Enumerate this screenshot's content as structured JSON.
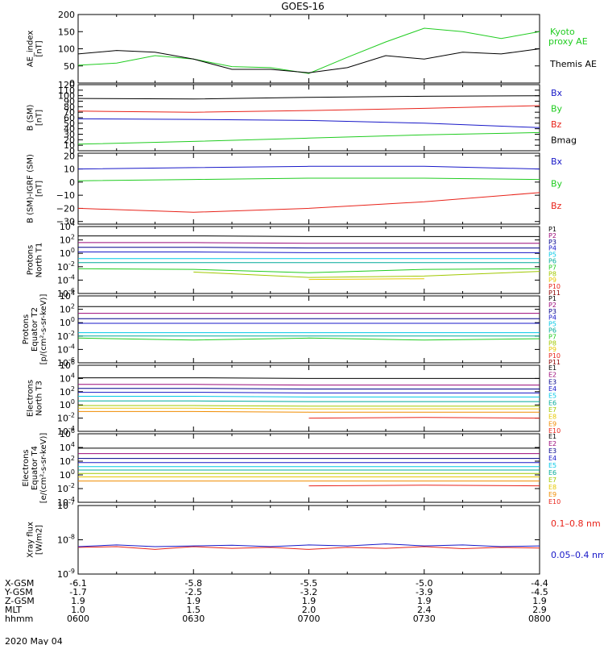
{
  "title": "GOES-16",
  "date_label": "2020 May 04",
  "colors": {
    "black": "#000000",
    "red": "#e8231a",
    "green": "#20cc20",
    "blue": "#1818c8",
    "cyan": "#00c8e6",
    "yellow": "#e6c800",
    "orange": "#f08c00",
    "magenta": "#9b0a7a",
    "teal": "#00aa99",
    "lime": "#a0c800",
    "navy": "#00008b",
    "dark_red": "#8b0000"
  },
  "orbit_table": {
    "rows": [
      {
        "label": "X-GSM",
        "values": [
          "-6.1",
          "-5.8",
          "-5.5",
          "-5.0",
          "-4.4"
        ]
      },
      {
        "label": "Y-GSM",
        "values": [
          "-1.7",
          "-2.5",
          "-3.2",
          "-3.9",
          "-4.5"
        ]
      },
      {
        "label": "Z-GSM",
        "values": [
          "1.9",
          "1.9",
          "1.9",
          "1.9",
          "1.9"
        ]
      },
      {
        "label": "MLT",
        "values": [
          "1.0",
          "1.5",
          "2.0",
          "2.4",
          "2.9"
        ]
      },
      {
        "label": "hhmm",
        "values": [
          "0600",
          "0630",
          "0700",
          "0730",
          "0800"
        ]
      }
    ]
  },
  "chart_data": [
    {
      "type": "line",
      "ylabel": [
        "AE_index",
        "[nT]"
      ],
      "ylim": [
        0,
        200
      ],
      "yticks": [
        "0",
        "50",
        "100",
        "150",
        "200"
      ],
      "ytick_values": [
        0,
        50,
        100,
        150,
        200
      ],
      "x": [
        "0600",
        "0610",
        "0620",
        "0630",
        "0640",
        "0650",
        "0700",
        "0710",
        "0720",
        "0730",
        "0740",
        "0750",
        "0800"
      ],
      "series": [
        {
          "name": "Kyoto proxy AE",
          "color": "green",
          "values": [
            52,
            58,
            80,
            70,
            48,
            45,
            28,
            75,
            120,
            160,
            150,
            130,
            150
          ]
        },
        {
          "name": "Themis AE",
          "color": "black",
          "values": [
            85,
            95,
            90,
            70,
            40,
            40,
            30,
            45,
            80,
            70,
            90,
            85,
            100
          ]
        }
      ],
      "legend": [
        "Kyoto",
        "proxy AE",
        "Themis AE"
      ]
    },
    {
      "type": "line",
      "ylabel": [
        "B (SM)",
        "[nT]"
      ],
      "ylim": [
        0,
        120
      ],
      "yticks": [
        "0",
        "10",
        "20",
        "30",
        "40",
        "50",
        "60",
        "70",
        "80",
        "90",
        "100",
        "110",
        "120"
      ],
      "ytick_values": [
        0,
        10,
        20,
        30,
        40,
        50,
        60,
        70,
        80,
        90,
        100,
        110,
        120
      ],
      "x": [
        "0600",
        "0630",
        "0700",
        "0730",
        "0800"
      ],
      "series": [
        {
          "name": "Bmag",
          "color": "black",
          "values": [
            95,
            94,
            97,
            99,
            100
          ]
        },
        {
          "name": "Bz",
          "color": "red",
          "values": [
            72,
            70,
            73,
            77,
            82
          ]
        },
        {
          "name": "Bx",
          "color": "blue",
          "values": [
            58,
            57,
            55,
            50,
            42
          ]
        },
        {
          "name": "By",
          "color": "green",
          "values": [
            12,
            17,
            23,
            29,
            33
          ]
        }
      ],
      "legend": [
        "Bx",
        "By",
        "Bz",
        "Bmag"
      ]
    },
    {
      "type": "line",
      "ylabel": [
        "B (SM)-IGRF (SM)",
        "[nT]"
      ],
      "ylim": [
        -32,
        22
      ],
      "yticks": [
        "20",
        "10",
        "0",
        "−10",
        "−20",
        "−30"
      ],
      "ytick_values": [
        20,
        10,
        0,
        -10,
        -20,
        -30
      ],
      "x": [
        "0600",
        "0630",
        "0700",
        "0730",
        "0800"
      ],
      "series": [
        {
          "name": "Bx",
          "color": "blue",
          "values": [
            10,
            11,
            12,
            12,
            10
          ]
        },
        {
          "name": "By",
          "color": "green",
          "values": [
            1,
            2,
            3,
            3,
            2
          ]
        },
        {
          "name": "Bz",
          "color": "red",
          "values": [
            -20,
            -23,
            -20,
            -15,
            -8
          ]
        }
      ],
      "legend": [
        "Bx",
        "By",
        "Bz"
      ]
    },
    {
      "type": "line",
      "ylabel": [
        "Protons",
        "North T1"
      ],
      "log": true,
      "ylim_exp": [
        -6,
        4
      ],
      "ytick_exps": [
        4,
        2,
        0,
        -2,
        -4,
        -6
      ],
      "x": [
        "0600",
        "0630",
        "0700",
        "0730",
        "0800"
      ],
      "series": [
        {
          "name": "P1",
          "color": "black",
          "values_log10": [
            2.6,
            2.6,
            2.5,
            2.5,
            2.5
          ]
        },
        {
          "name": "P2",
          "color": "magenta",
          "values_log10": [
            1.6,
            1.6,
            1.5,
            1.5,
            1.5
          ]
        },
        {
          "name": "P3",
          "color": "navy",
          "values_log10": [
            0.9,
            0.9,
            0.8,
            0.8,
            0.8
          ]
        },
        {
          "name": "P4",
          "color": "blue",
          "values_log10": [
            0.2,
            0.2,
            0.1,
            0.1,
            0.1
          ]
        },
        {
          "name": "P5",
          "color": "cyan",
          "values_log10": [
            -0.8,
            -0.8,
            -0.8,
            -0.8,
            -0.8
          ]
        },
        {
          "name": "P6",
          "color": "teal",
          "values_log10": [
            -1.4,
            -1.4,
            -1.4,
            -1.4,
            -1.4
          ]
        },
        {
          "name": "P7",
          "color": "green",
          "values_log10": [
            -2.3,
            -2.4,
            -2.9,
            -2.4,
            -2.3
          ]
        },
        {
          "name": "P8",
          "color": "lime",
          "values_log10": [
            null,
            -2.8,
            -3.6,
            -3.4,
            -2.7
          ]
        },
        {
          "name": "P9",
          "color": "yellow",
          "values_log10": [
            null,
            null,
            -3.9,
            -3.8,
            null
          ]
        },
        {
          "name": "P10",
          "color": "red",
          "values_log10": [
            null,
            null,
            null,
            null,
            null
          ]
        },
        {
          "name": "P11",
          "color": "dark_red",
          "values_log10": [
            null,
            null,
            null,
            null,
            null
          ]
        }
      ],
      "legend": [
        "P1",
        "P2",
        "P3",
        "P4",
        "P5",
        "P6",
        "P7",
        "P8",
        "P9",
        "P10",
        "P11"
      ]
    },
    {
      "type": "line",
      "ylabel": [
        "Protons",
        "Equator T2",
        "[p/(cm²-s-sr-keV)]"
      ],
      "log": true,
      "ylim_exp": [
        -6,
        4
      ],
      "ytick_exps": [
        4,
        2,
        0,
        -2,
        -4,
        -6
      ],
      "x": [
        "0600",
        "0630",
        "0700",
        "0730",
        "0800"
      ],
      "series": [
        {
          "name": "P1",
          "color": "black",
          "values_log10": [
            2.4,
            2.4,
            2.4,
            2.4,
            2.4
          ]
        },
        {
          "name": "P2",
          "color": "magenta",
          "values_log10": [
            1.4,
            1.4,
            1.4,
            1.4,
            1.4
          ]
        },
        {
          "name": "P3",
          "color": "navy",
          "values_log10": [
            0.6,
            0.6,
            0.6,
            0.6,
            0.6
          ]
        },
        {
          "name": "P4",
          "color": "blue",
          "values_log10": [
            -0.1,
            -0.1,
            -0.1,
            -0.1,
            -0.1
          ]
        },
        {
          "name": "P5",
          "color": "cyan",
          "values_log10": [
            -1.5,
            -1.5,
            -1.5,
            -1.5,
            -1.5
          ]
        },
        {
          "name": "P6",
          "color": "teal",
          "values_log10": [
            -2.0,
            -2.0,
            -2.0,
            -2.0,
            -2.0
          ]
        },
        {
          "name": "P7",
          "color": "green",
          "values_log10": [
            -2.3,
            -2.6,
            -2.3,
            -2.6,
            -2.4
          ]
        },
        {
          "name": "P8",
          "color": "lime",
          "values_log10": [
            null,
            -3.0,
            null,
            -3.1,
            null
          ]
        },
        {
          "name": "P9",
          "color": "yellow",
          "values_log10": [
            null,
            -3.5,
            null,
            -3.4,
            null
          ]
        },
        {
          "name": "P10",
          "color": "red",
          "values_log10": [
            null,
            null,
            null,
            null,
            null
          ]
        },
        {
          "name": "P11",
          "color": "dark_red",
          "values_log10": [
            null,
            null,
            null,
            null,
            null
          ]
        }
      ],
      "legend": [
        "P1",
        "P2",
        "P3",
        "P4",
        "P5",
        "P6",
        "P7",
        "P8",
        "P9",
        "P10",
        "P11"
      ]
    },
    {
      "type": "line",
      "ylabel": [
        "Electrons",
        "North T3"
      ],
      "log": true,
      "ylim_exp": [
        -4,
        6
      ],
      "ytick_exps": [
        6,
        4,
        2,
        0,
        -2,
        -4
      ],
      "x": [
        "0600",
        "0630",
        "0700",
        "0730",
        "0800"
      ],
      "series": [
        {
          "name": "E1",
          "color": "black",
          "values_log10": [
            4.1,
            4.1,
            4.0,
            4.0,
            4.0
          ]
        },
        {
          "name": "E2",
          "color": "magenta",
          "values_log10": [
            3.1,
            3.1,
            3.0,
            3.0,
            3.0
          ]
        },
        {
          "name": "E3",
          "color": "navy",
          "values_log10": [
            2.5,
            2.5,
            2.4,
            2.4,
            2.4
          ]
        },
        {
          "name": "E4",
          "color": "blue",
          "values_log10": [
            1.9,
            1.9,
            1.8,
            1.8,
            1.8
          ]
        },
        {
          "name": "E5",
          "color": "cyan",
          "values_log10": [
            1.3,
            1.3,
            1.2,
            1.2,
            1.2
          ]
        },
        {
          "name": "E6",
          "color": "teal",
          "values_log10": [
            0.6,
            0.6,
            0.5,
            0.5,
            0.5
          ]
        },
        {
          "name": "E7",
          "color": "lime",
          "values_log10": [
            -0.1,
            -0.1,
            -0.2,
            -0.2,
            -0.2
          ]
        },
        {
          "name": "E8",
          "color": "yellow",
          "values_log10": [
            -0.5,
            -0.5,
            -0.6,
            -0.6,
            -0.6
          ]
        },
        {
          "name": "E9",
          "color": "orange",
          "values_log10": [
            -1.0,
            -1.0,
            -1.1,
            -1.1,
            -1.1
          ]
        },
        {
          "name": "E10",
          "color": "red",
          "values_log10": [
            -1.8,
            null,
            -2.0,
            -1.9,
            -2.0
          ]
        }
      ],
      "legend": [
        "E1",
        "E2",
        "E3",
        "E4",
        "E5",
        "E6",
        "E7",
        "E8",
        "E9",
        "E10"
      ]
    },
    {
      "type": "line",
      "ylabel": [
        "Electrons",
        "Equator T4",
        "[e/(cm²-s-sr-keV)]"
      ],
      "log": true,
      "ylim_exp": [
        -4,
        6
      ],
      "ytick_exps": [
        6,
        4,
        2,
        0,
        -2,
        -4
      ],
      "x": [
        "0600",
        "0630",
        "0700",
        "0730",
        "0800"
      ],
      "series": [
        {
          "name": "E1",
          "color": "black",
          "values_log10": [
            3.9,
            3.9,
            3.9,
            3.9,
            3.9
          ]
        },
        {
          "name": "E2",
          "color": "magenta",
          "values_log10": [
            3.1,
            3.1,
            3.1,
            3.1,
            3.1
          ]
        },
        {
          "name": "E3",
          "color": "navy",
          "values_log10": [
            2.4,
            2.4,
            2.4,
            2.4,
            2.4
          ]
        },
        {
          "name": "E4",
          "color": "blue",
          "values_log10": [
            1.8,
            1.8,
            1.8,
            1.8,
            1.8
          ]
        },
        {
          "name": "E5",
          "color": "cyan",
          "values_log10": [
            1.2,
            1.2,
            1.2,
            1.2,
            1.2
          ]
        },
        {
          "name": "E6",
          "color": "teal",
          "values_log10": [
            0.7,
            0.7,
            0.7,
            0.7,
            0.7
          ]
        },
        {
          "name": "E7",
          "color": "lime",
          "values_log10": [
            0.2,
            0.2,
            0.2,
            0.2,
            0.2
          ]
        },
        {
          "name": "E8",
          "color": "yellow",
          "values_log10": [
            -0.3,
            -0.3,
            -0.3,
            -0.3,
            -0.3
          ]
        },
        {
          "name": "E9",
          "color": "orange",
          "values_log10": [
            -0.9,
            -0.9,
            -0.9,
            -0.9,
            -0.9
          ]
        },
        {
          "name": "E10",
          "color": "red",
          "values_log10": [
            null,
            null,
            -1.6,
            -1.5,
            -1.6
          ]
        }
      ],
      "legend": [
        "E1",
        "E2",
        "E3",
        "E4",
        "E5",
        "E6",
        "E7",
        "E8",
        "E9",
        "E10"
      ]
    },
    {
      "type": "line",
      "ylabel": [
        "Xray flux",
        "[W/m2]"
      ],
      "log": true,
      "ylim_exp": [
        -9,
        -7
      ],
      "ytick_exps": [
        -7,
        -8,
        -9
      ],
      "x": [
        "0600",
        "0610",
        "0620",
        "0630",
        "0640",
        "0650",
        "0700",
        "0710",
        "0720",
        "0730",
        "0740",
        "0750",
        "0800"
      ],
      "series": [
        {
          "name": "0.1-0.8 nm",
          "color": "red",
          "values_log10": [
            -8.22,
            -8.2,
            -8.28,
            -8.2,
            -8.25,
            -8.22,
            -8.28,
            -8.22,
            -8.25,
            -8.2,
            -8.26,
            -8.22,
            -8.24
          ]
        },
        {
          "name": "0.05-0.4 nm",
          "color": "blue",
          "values_log10": [
            -8.2,
            -8.15,
            -8.2,
            -8.18,
            -8.16,
            -8.2,
            -8.15,
            -8.18,
            -8.12,
            -8.18,
            -8.15,
            -8.2,
            -8.18
          ]
        }
      ],
      "legend": [
        "0.1–0.8 nm",
        "0.05–0.4 nm"
      ]
    }
  ]
}
